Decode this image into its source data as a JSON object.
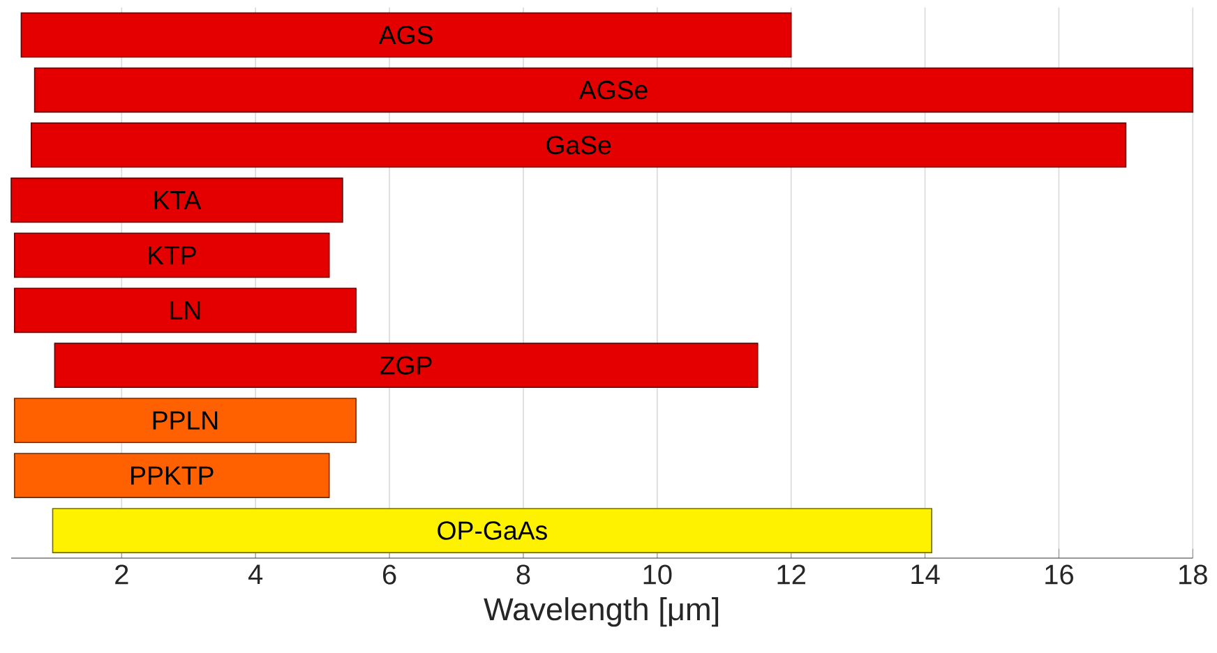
{
  "chart_data": {
    "type": "bar",
    "orientation": "horizontal",
    "xlabel": "Wavelength [μm]",
    "categories": [
      "AGS",
      "AGSe",
      "GaSe",
      "KTA",
      "KTP",
      "LN",
      "ZGP",
      "PPLN",
      "PPKTP",
      "OP-GaAs"
    ],
    "base": [
      0.5,
      0.7,
      0.65,
      0.35,
      0.4,
      0.4,
      1.0,
      0.4,
      0.4,
      0.97
    ],
    "values": [
      11.5,
      17.3,
      16.35,
      4.95,
      4.7,
      5.1,
      10.5,
      5.1,
      4.7,
      13.13
    ],
    "colors": [
      "#e50000",
      "#e50000",
      "#e50000",
      "#e50000",
      "#e50000",
      "#e50000",
      "#e50000",
      "#ff6000",
      "#ff6000",
      "#fff200"
    ],
    "xlim": [
      0.35,
      18
    ],
    "xticks": [
      2,
      4,
      6,
      8,
      10,
      12,
      14,
      16,
      18
    ],
    "grid": "x",
    "tick_labels": "x"
  }
}
